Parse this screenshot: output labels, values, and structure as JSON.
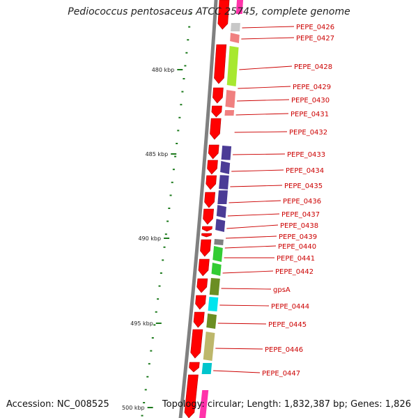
{
  "title": "Pediococcus pentosaceus ATCC 25745, complete genome",
  "footer": {
    "accession": "Accession: NC_008525",
    "summary": "Topology: circular; Length: 1,832,387 bp; Genes: 1,826"
  },
  "colors": {
    "strand_forward": "#ff0000",
    "feature_label": "#cc0000",
    "scale_tick": "#1c7a1c",
    "backbone": "#808080",
    "outer_ring": "#ff33aa"
  },
  "scale": {
    "labels": [
      {
        "text": "480 kbp",
        "major": true
      },
      {
        "text": "485 kbp",
        "major": true
      },
      {
        "text": "490 kbp",
        "major": true
      },
      {
        "text": "495 kbp",
        "major": true
      },
      {
        "text": "500 kbp",
        "major": true
      }
    ]
  },
  "features": [
    {
      "label": "PEPE_0426",
      "color": "#c8c8c8"
    },
    {
      "label": "PEPE_0427",
      "color": "#f08080"
    },
    {
      "label": "PEPE_0428",
      "color": "#a8e830"
    },
    {
      "label": "PEPE_0429",
      "color": "#f08080"
    },
    {
      "label": "PEPE_0430",
      "color": "#f08080"
    },
    {
      "label": "PEPE_0431",
      "color": "#ffffff"
    },
    {
      "label": "PEPE_0432",
      "color": "#33cc33"
    },
    {
      "label": "PEPE_0433",
      "color": "#4b3c96"
    },
    {
      "label": "PEPE_0434",
      "color": "#4b3c96"
    },
    {
      "label": "PEPE_0435",
      "color": "#4b3c96"
    },
    {
      "label": "PEPE_0436",
      "color": "#4b3c96"
    },
    {
      "label": "PEPE_0437",
      "color": "#4b3c96"
    },
    {
      "label": "PEPE_0438",
      "color": "#4b3c96"
    },
    {
      "label": "PEPE_0439",
      "color": "#808080"
    },
    {
      "label": "PEPE_0440",
      "color": "#33cc33"
    },
    {
      "label": "PEPE_0441",
      "color": "#33cc33"
    },
    {
      "label": "PEPE_0442",
      "color": "#6b8e23"
    },
    {
      "label": "gpsA",
      "color": "#00e5ee"
    },
    {
      "label": "PEPE_0444",
      "color": "#6b8e23"
    },
    {
      "label": "PEPE_0445",
      "color": "#bdb76b"
    },
    {
      "label": "PEPE_0446",
      "color": "#00c5cd"
    },
    {
      "label": "PEPE_0447",
      "color": "#c8c8c8"
    }
  ]
}
